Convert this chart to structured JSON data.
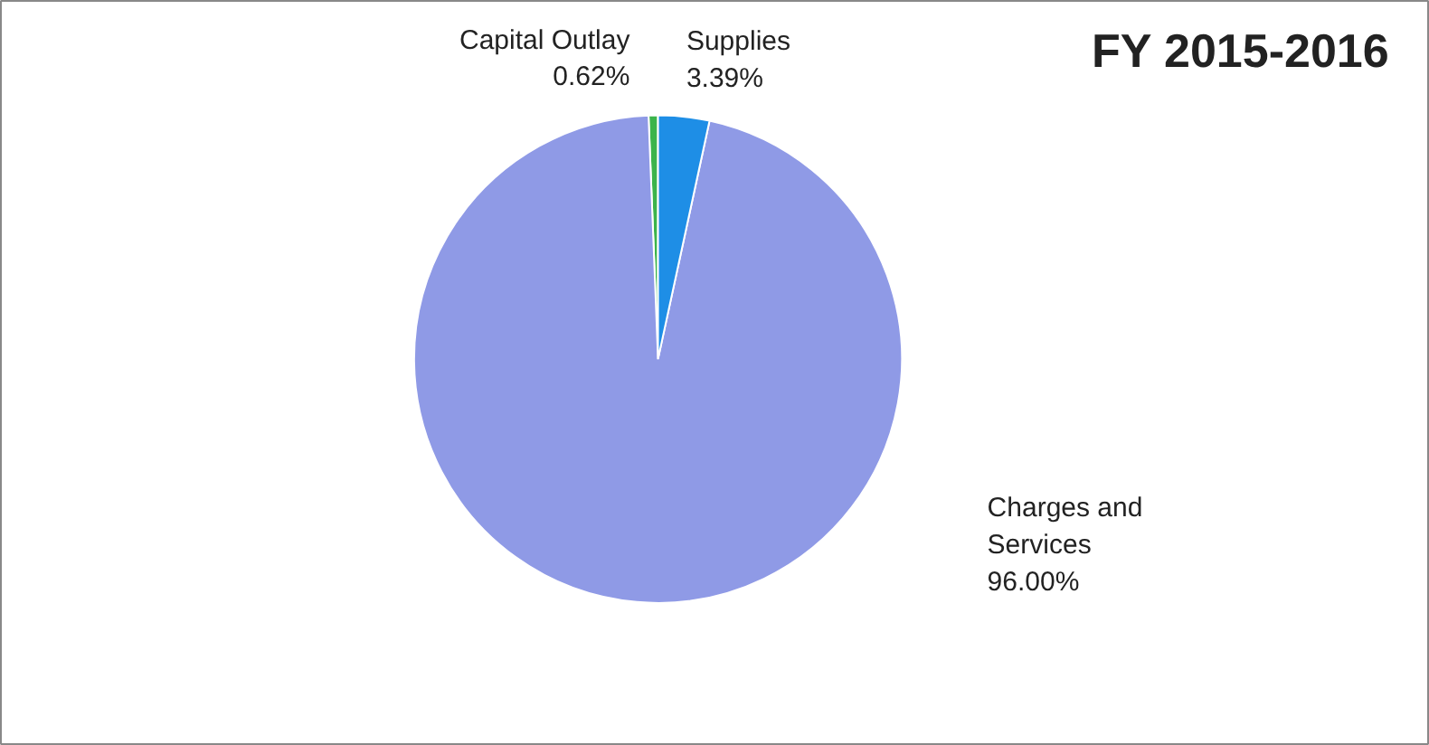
{
  "chart_data": {
    "type": "pie",
    "title": "FY 2015-2016",
    "categories": [
      "Capital Outlay",
      "Charges and Services",
      "Supplies"
    ],
    "values": [
      0.62,
      96.0,
      3.39
    ],
    "colors": [
      "#3cb44b",
      "#8f9ae6",
      "#1e8ee6"
    ],
    "value_labels": [
      "0.62%",
      "96.00%",
      "3.39%"
    ]
  }
}
